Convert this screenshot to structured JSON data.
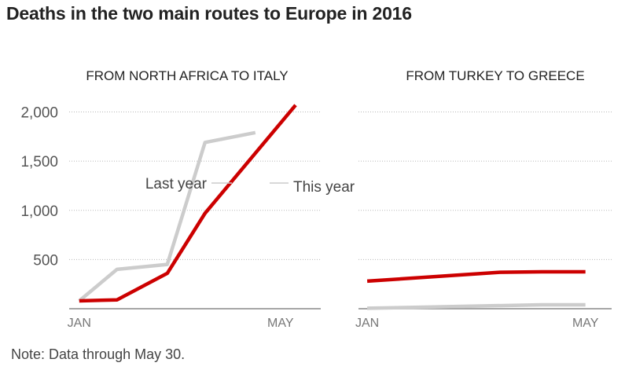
{
  "title": "Deaths in the two main routes to Europe in 2016",
  "note": "Note: Data through May 30.",
  "colors": {
    "this_year": "#cc0000",
    "last_year": "#cccccc"
  },
  "chart_data": [
    {
      "type": "line",
      "title": "FROM NORTH AFRICA TO ITALY",
      "x": [
        0,
        0.75,
        1.75,
        2.5,
        3.5,
        4.3
      ],
      "x_tick_positions": [
        0,
        4
      ],
      "x_tick_labels": [
        "JAN",
        "MAY"
      ],
      "xlim": [
        -0.2,
        4.8
      ],
      "ylim": [
        0,
        2100
      ],
      "y_ticks": [
        500,
        1000,
        1500,
        2000
      ],
      "y_tick_labels": [
        "500",
        "1,000",
        "1,500",
        "2,000"
      ],
      "grid": true,
      "series": [
        {
          "name": "Last year",
          "color": "#cccccc",
          "values": [
            80,
            400,
            450,
            1690,
            1790,
            null
          ]
        },
        {
          "name": "This year",
          "color": "#cc0000",
          "values": [
            80,
            90,
            360,
            970,
            null,
            2070
          ]
        }
      ]
    },
    {
      "type": "line",
      "title": "FROM TURKEY TO GREECE",
      "x": [
        0,
        3,
        4,
        5
      ],
      "x_tick_positions": [
        0,
        5
      ],
      "x_tick_labels": [
        "JAN",
        "MAY"
      ],
      "xlim": [
        -0.2,
        5.6
      ],
      "ylim": [
        0,
        2100
      ],
      "y_ticks": [
        500,
        1000,
        1500,
        2000
      ],
      "grid": true,
      "series": [
        {
          "name": "Last year",
          "color": "#cccccc",
          "values": [
            5,
            null,
            40,
            40
          ]
        },
        {
          "name": "This year",
          "color": "#cc0000",
          "values": [
            280,
            370,
            375,
            375
          ]
        }
      ]
    }
  ]
}
